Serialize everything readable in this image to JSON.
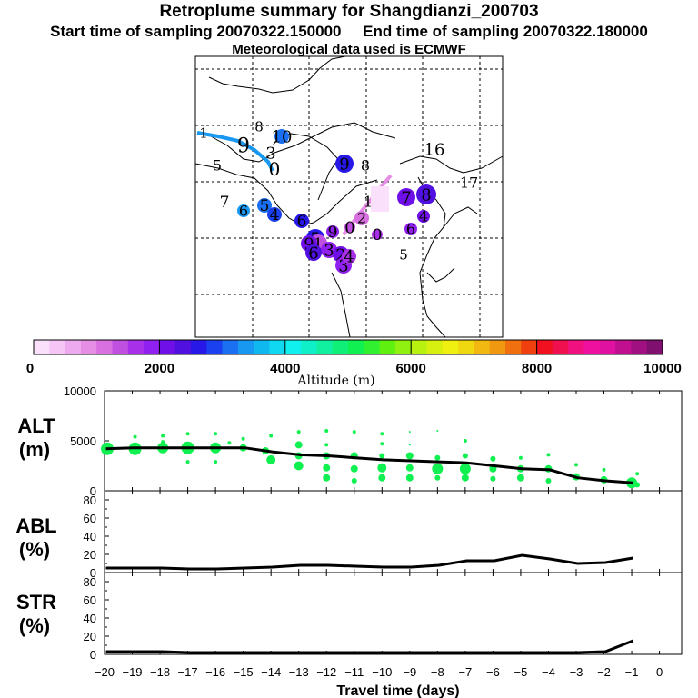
{
  "header": {
    "title": "Retroplume summary for Shangdianzi_200703",
    "start_label": "Start time of sampling 20070322.150000",
    "end_label": "End time of sampling 20070322.180000",
    "met_label": "Meteorological data used is ECMWF"
  },
  "colorbar": {
    "ticks": [
      "0",
      "2000",
      "4000",
      "6000",
      "8000",
      "10000"
    ],
    "label": "Altitude (m)",
    "colors": [
      "#fbe0fb",
      "#f5c5f5",
      "#eeaaee",
      "#e68ee6",
      "#d870e0",
      "#c050e0",
      "#a830e8",
      "#9020f0",
      "#7010e8",
      "#5010e0",
      "#2818e8",
      "#1a40f0",
      "#1a70f0",
      "#1898f0",
      "#10b8f0",
      "#10d8f0",
      "#10f0ee",
      "#10f0c8",
      "#10f0a0",
      "#10f078",
      "#10f050",
      "#30f030",
      "#60f010",
      "#90f010",
      "#b8f010",
      "#d8f010",
      "#f0f010",
      "#f0d810",
      "#f0b810",
      "#f09810",
      "#f07010",
      "#f04010",
      "#f01020",
      "#f01050",
      "#f01080",
      "#f010a0",
      "#e010a0",
      "#c01090",
      "#a01080",
      "#801070"
    ]
  },
  "map": {
    "path_cyan": "Path: from west edge to near point 3/0",
    "plume_points": [
      {
        "label": "1",
        "color": "#1a70f0"
      },
      {
        "label": "8",
        "color": "#1898f0"
      },
      {
        "label": "10",
        "color": "#1a70f0"
      },
      {
        "label": "9",
        "color": "#10b8f0"
      },
      {
        "label": "3",
        "color": "#10b8f0"
      },
      {
        "label": "0",
        "color": "#10d8f0"
      },
      {
        "label": "5",
        "color": "#10d8f0"
      },
      {
        "label": "7",
        "color": "#10d8f0"
      },
      {
        "label": "6",
        "color": "#1898f0"
      },
      {
        "label": "5",
        "color": "#1a70f0"
      },
      {
        "label": "4",
        "color": "#1a40f0"
      },
      {
        "label": "6",
        "color": "#2818e8"
      },
      {
        "label": "5",
        "color": "#2818e8"
      },
      {
        "label": "9",
        "color": "#2818e8"
      },
      {
        "label": "8",
        "color": "#5010e0"
      },
      {
        "label": "16",
        "color": "#5010e0"
      },
      {
        "label": "17",
        "color": "#1a40f0"
      },
      {
        "label": "7",
        "color": "#7010e8"
      },
      {
        "label": "8",
        "color": "#5010e0"
      },
      {
        "label": "1",
        "color": "#e68ee6"
      },
      {
        "label": "2",
        "color": "#d870e0"
      },
      {
        "label": "0",
        "color": "#c050e0"
      },
      {
        "label": "9",
        "color": "#9020f0"
      },
      {
        "label": "6",
        "color": "#9020f0"
      },
      {
        "label": "5",
        "color": "#a830e8"
      },
      {
        "label": "1",
        "color": "#c050e0"
      },
      {
        "label": "0",
        "color": "#a830e8"
      },
      {
        "label": "3",
        "color": "#9020f0"
      },
      {
        "label": "2",
        "color": "#7010e8"
      },
      {
        "label": "9",
        "color": "#7010e8"
      },
      {
        "label": "6",
        "color": "#5010e0"
      },
      {
        "label": "3",
        "color": "#9020f0"
      },
      {
        "label": "4",
        "color": "#a830e8"
      },
      {
        "label": "4",
        "color": "#7010e8"
      }
    ]
  },
  "chart_data": [
    {
      "type": "scatter+line",
      "panel": "ALT",
      "ylabel": "ALT\n(m)",
      "ylabel_line1": "ALT",
      "ylabel_line2": "(m)",
      "ylim": [
        0,
        10000
      ],
      "yticks": [
        "10000",
        "5000",
        "0"
      ],
      "x": [
        -20,
        -19,
        -18,
        -17,
        -16,
        -15,
        -14,
        -13,
        -12,
        -11,
        -10,
        -9,
        -8,
        -7,
        -6,
        -5,
        -4,
        -3,
        -2,
        -1
      ],
      "mean_line": [
        4200,
        4300,
        4300,
        4300,
        4300,
        4300,
        3900,
        3600,
        3500,
        3300,
        3100,
        3000,
        2900,
        2800,
        2500,
        2200,
        2100,
        1300,
        1000,
        800
      ],
      "dots": [
        [
          -19.9,
          4200,
          7
        ],
        [
          -18.9,
          4200,
          7
        ],
        [
          -18.9,
          5400,
          2
        ],
        [
          -17.9,
          4300,
          6
        ],
        [
          -17.9,
          5500,
          2
        ],
        [
          -17.9,
          4900,
          2
        ],
        [
          -17,
          5700,
          2
        ],
        [
          -17,
          4300,
          7
        ],
        [
          -17,
          2900,
          2
        ],
        [
          -16,
          4300,
          6
        ],
        [
          -16,
          5700,
          2
        ],
        [
          -16,
          2900,
          2
        ],
        [
          -15.5,
          4800,
          2
        ],
        [
          -15,
          4300,
          4
        ],
        [
          -15,
          5200,
          2
        ],
        [
          -14.2,
          4000,
          4
        ],
        [
          -14,
          3100,
          5
        ],
        [
          -14,
          5500,
          2
        ],
        [
          -13,
          4600,
          4
        ],
        [
          -13,
          3500,
          4
        ],
        [
          -13,
          2500,
          5
        ],
        [
          -13,
          5900,
          2
        ],
        [
          -12,
          3500,
          4
        ],
        [
          -12,
          2300,
          4
        ],
        [
          -12,
          1300,
          4
        ],
        [
          -12,
          4600,
          2
        ],
        [
          -12,
          6000,
          2
        ],
        [
          -11,
          3500,
          4
        ],
        [
          -11,
          2200,
          4
        ],
        [
          -11,
          1000,
          3
        ],
        [
          -11,
          5900,
          2
        ],
        [
          -10,
          3500,
          3
        ],
        [
          -10,
          2300,
          5
        ],
        [
          -10,
          1300,
          4
        ],
        [
          -10,
          4700,
          2
        ],
        [
          -10,
          5700,
          2
        ],
        [
          -9,
          3500,
          4
        ],
        [
          -9,
          2300,
          4
        ],
        [
          -9,
          1300,
          4
        ],
        [
          -9,
          4600,
          1
        ],
        [
          -9,
          5900,
          1
        ],
        [
          -8,
          2200,
          6
        ],
        [
          -8,
          3300,
          3
        ],
        [
          -8,
          1300,
          3
        ],
        [
          -8,
          6000,
          1
        ],
        [
          -7,
          2200,
          6
        ],
        [
          -7,
          3500,
          3
        ],
        [
          -7,
          1300,
          4
        ],
        [
          -7,
          5000,
          2
        ],
        [
          -6,
          3200,
          3
        ],
        [
          -6,
          2200,
          4
        ],
        [
          -6,
          1200,
          3
        ],
        [
          -5,
          2200,
          4
        ],
        [
          -5,
          1300,
          4
        ],
        [
          -5,
          3300,
          2
        ],
        [
          -4,
          2200,
          4
        ],
        [
          -4,
          3600,
          2
        ],
        [
          -4,
          1000,
          3
        ],
        [
          -3,
          1400,
          4
        ],
        [
          -3,
          2600,
          2
        ],
        [
          -2,
          1100,
          4
        ],
        [
          -2,
          2100,
          2
        ],
        [
          -1,
          800,
          6
        ],
        [
          -0.8,
          600,
          3
        ],
        [
          -0.8,
          1700,
          2
        ]
      ]
    },
    {
      "type": "line",
      "panel": "ABL",
      "ylabel_line1": "ABL",
      "ylabel_line2": "(%)",
      "ylim": [
        0,
        90
      ],
      "yticks": [
        "80",
        "60",
        "40",
        "20",
        "0"
      ],
      "x": [
        -20,
        -19,
        -18,
        -17,
        -16,
        -15,
        -14,
        -13,
        -12,
        -11,
        -10,
        -9,
        -8,
        -7,
        -6,
        -5,
        -4,
        -3,
        -2,
        -1
      ],
      "values": [
        5,
        5,
        5,
        4,
        4,
        5,
        6,
        8,
        8,
        7,
        6,
        6,
        8,
        13,
        13,
        19,
        15,
        10,
        11,
        16
      ]
    },
    {
      "type": "line",
      "panel": "STR",
      "ylabel_line1": "STR",
      "ylabel_line2": "(%)",
      "ylim": [
        0,
        90
      ],
      "yticks": [
        "80",
        "60",
        "40",
        "20",
        "0"
      ],
      "x": [
        -20,
        -19,
        -18,
        -17,
        -16,
        -15,
        -14,
        -13,
        -12,
        -11,
        -10,
        -9,
        -8,
        -7,
        -6,
        -5,
        -4,
        -3,
        -2,
        -1
      ],
      "values": [
        3,
        3,
        3,
        2,
        2,
        2,
        2,
        2,
        2,
        2,
        2,
        2,
        2,
        2,
        2,
        2,
        2,
        2,
        3,
        15
      ],
      "xlabel": "Travel time (days)",
      "xticks": [
        "−20",
        "−19",
        "−18",
        "−17",
        "−16",
        "−15",
        "−14",
        "−13",
        "−12",
        "−11",
        "−10",
        "−9",
        "−8",
        "−7",
        "−6",
        "−5",
        "−4",
        "−3",
        "−2",
        "−1",
        "0"
      ]
    }
  ]
}
